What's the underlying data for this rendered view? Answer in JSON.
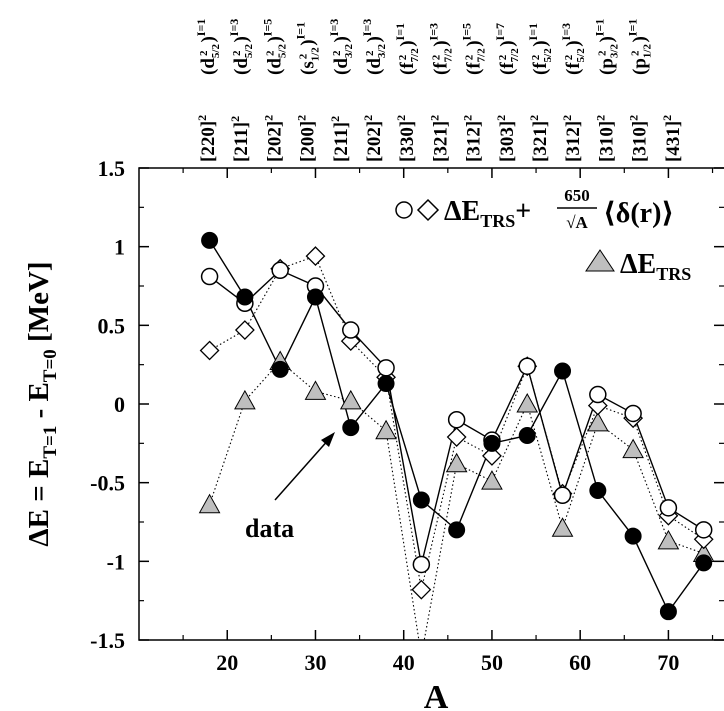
{
  "chart_data": {
    "type": "line",
    "xlabel": "A",
    "ylabel": "ΔE = E_{T=1} - E_{T=0} [MeV]",
    "xlim": [
      10,
      78
    ],
    "ylim": [
      -1.5,
      1.5
    ],
    "x_ticks": [
      "20",
      "30",
      "40",
      "50",
      "60",
      "70"
    ],
    "y_ticks": [
      "1.5",
      "1",
      "0.5",
      "0",
      "-0.5",
      "-1",
      "-1.5"
    ],
    "top_configurations": [
      {
        "nilsson": "[220]",
        "orbital": "d",
        "j": "5/2",
        "I": "1"
      },
      {
        "nilsson": "[211]",
        "orbital": "d",
        "j": "5/2",
        "I": "3"
      },
      {
        "nilsson": "[202]",
        "orbital": "d",
        "j": "5/2",
        "I": "5"
      },
      {
        "nilsson": "[200]",
        "orbital": "s",
        "j": "1/2",
        "I": "1"
      },
      {
        "nilsson": "[211]",
        "orbital": "d",
        "j": "3/2",
        "I": "3"
      },
      {
        "nilsson": "[202]",
        "orbital": "d",
        "j": "3/2",
        "I": "3"
      },
      {
        "nilsson": "[330]",
        "orbital": "f",
        "j": "7/2",
        "I": "1"
      },
      {
        "nilsson": "[321]",
        "orbital": "f",
        "j": "7/2",
        "I": "3"
      },
      {
        "nilsson": "[312]",
        "orbital": "f",
        "j": "7/2",
        "I": "5"
      },
      {
        "nilsson": "[303]",
        "orbital": "f",
        "j": "7/2",
        "I": "7"
      },
      {
        "nilsson": "[321]",
        "orbital": "f",
        "j": "5/2",
        "I": "1"
      },
      {
        "nilsson": "[312]",
        "orbital": "f",
        "j": "5/2",
        "I": "3"
      },
      {
        "nilsson": "[310]",
        "orbital": "p",
        "j": "3/2",
        "I": "1"
      },
      {
        "nilsson": "[310]",
        "orbital": "p",
        "j": "1/2",
        "I": "1"
      },
      {
        "nilsson": "[431]",
        "orbital": "",
        "j": "",
        "I": ""
      }
    ],
    "legend": {
      "open_markers_text": "ΔE_TRS+ 650/√A ⟨δ(r)⟩",
      "fraction_numerator": "650",
      "fraction_denominator": "√A",
      "tail": "⟨δ(r)⟩",
      "triangle_text": "ΔE_TRS"
    },
    "annotation": {
      "text": "data",
      "points_to_x": 34,
      "points_to_y": -0.15
    },
    "series": [
      {
        "marker": "filled-circle",
        "line": "solid",
        "x": [
          18,
          22,
          26,
          30,
          34,
          38,
          42,
          46,
          50,
          54,
          58,
          62,
          66,
          70,
          74
        ],
        "y": [
          1.04,
          0.68,
          0.22,
          0.68,
          -0.15,
          0.13,
          -0.61,
          -0.8,
          -0.25,
          -0.2,
          0.21,
          -0.55,
          -0.84,
          -1.32,
          -1.01
        ]
      },
      {
        "marker": "open-circle",
        "line": "solid",
        "x": [
          18,
          22,
          26,
          30,
          34,
          38,
          42,
          46,
          50,
          54,
          58,
          62,
          66,
          70,
          74
        ],
        "y": [
          0.81,
          0.64,
          0.85,
          0.75,
          0.47,
          0.23,
          -1.02,
          -0.1,
          -0.23,
          0.24,
          -0.58,
          0.06,
          -0.06,
          -0.66,
          -0.8
        ]
      },
      {
        "marker": "open-diamond",
        "line": "dotted",
        "x": [
          18,
          22,
          26,
          30,
          34,
          38,
          42,
          46,
          50,
          54,
          58,
          62,
          66,
          70,
          74
        ],
        "y": [
          0.34,
          0.47,
          0.86,
          0.94,
          0.4,
          0.17,
          -1.18,
          -0.21,
          -0.33,
          0.24,
          -0.57,
          -0.01,
          -0.09,
          -0.71,
          -0.86
        ]
      },
      {
        "marker": "gray-triangle",
        "line": "dotted",
        "x": [
          18,
          22,
          26,
          30,
          34,
          38,
          42,
          46,
          50,
          54,
          58,
          62,
          66,
          70,
          74
        ],
        "y": [
          -0.64,
          0.02,
          0.27,
          0.08,
          0.02,
          -0.17,
          -1.6,
          -0.38,
          -0.49,
          0.0,
          -0.79,
          -0.12,
          -0.29,
          -0.87,
          -0.95
        ]
      }
    ]
  },
  "colors": {
    "ink": "#000000",
    "triangle_fill": "#bfbfbf",
    "background": "#ffffff"
  }
}
